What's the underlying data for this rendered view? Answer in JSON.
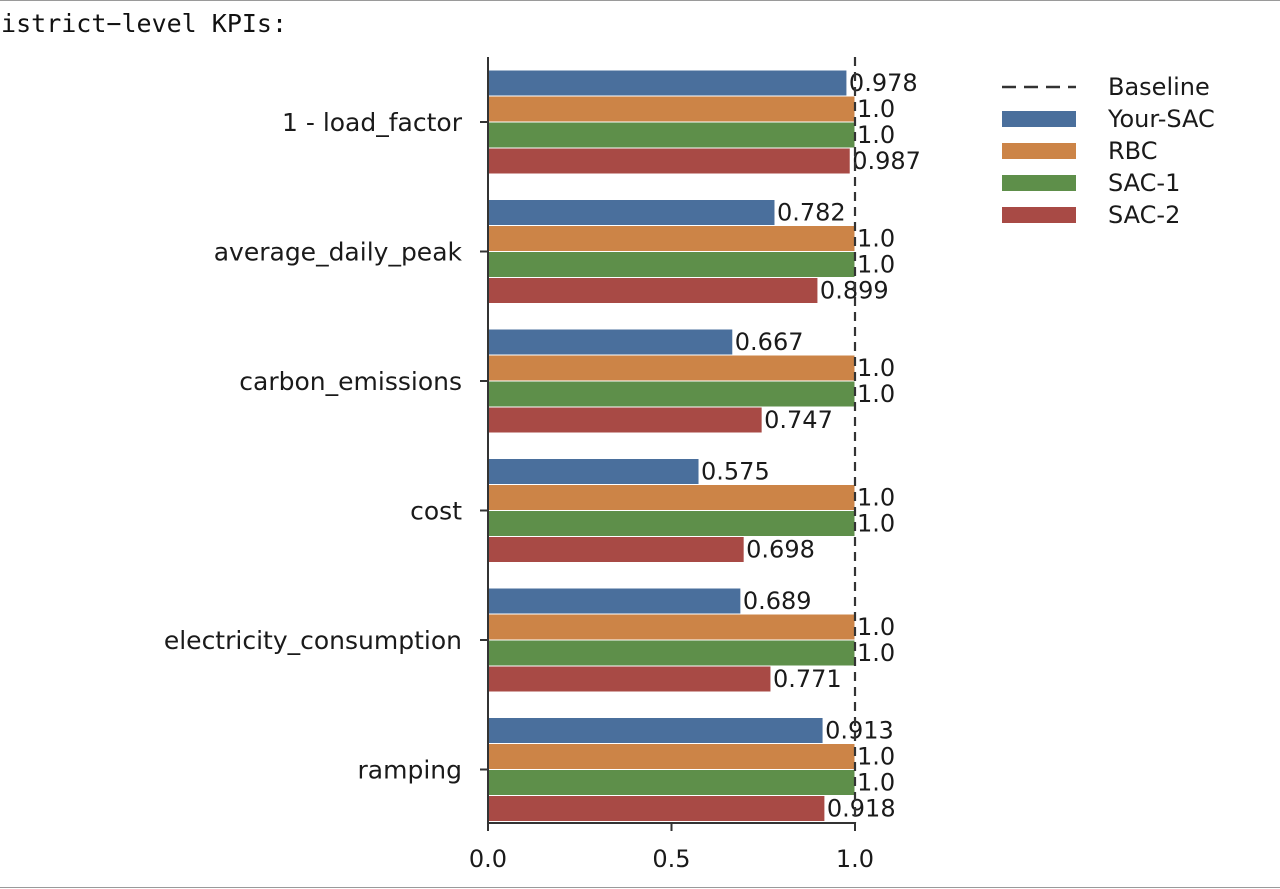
{
  "heading": "District−level KPIs:",
  "colors": {
    "Your-SAC": "#4a6f9c",
    "RBC": "#cc8447",
    "SAC-1": "#5e8f4a",
    "SAC-2": "#a84a45",
    "baseline": "#333333",
    "axis": "#333333"
  },
  "chart_data": {
    "type": "bar",
    "orientation": "horizontal",
    "title": "",
    "xlabel": "",
    "ylabel": "",
    "xlim": [
      0,
      1.0
    ],
    "xticks": [
      "0.0",
      "0.5",
      "1.0"
    ],
    "xtick_values": [
      0,
      0.5,
      1.0
    ],
    "categories": [
      "1 - load_factor",
      "average_daily_peak",
      "carbon_emissions",
      "cost",
      "electricity_consumption",
      "ramping"
    ],
    "series": [
      {
        "name": "Your-SAC",
        "values": [
          0.978,
          0.782,
          0.667,
          0.575,
          0.689,
          0.913
        ],
        "labels": [
          "0.978",
          "0.782",
          "0.667",
          "0.575",
          "0.689",
          "0.913"
        ]
      },
      {
        "name": "RBC",
        "values": [
          1.0,
          1.0,
          1.0,
          1.0,
          1.0,
          1.0
        ],
        "labels": [
          "1.0",
          "1.0",
          "1.0",
          "1.0",
          "1.0",
          "1.0"
        ]
      },
      {
        "name": "SAC-1",
        "values": [
          1.0,
          1.0,
          1.0,
          1.0,
          1.0,
          1.0
        ],
        "labels": [
          "1.0",
          "1.0",
          "1.0",
          "1.0",
          "1.0",
          "1.0"
        ]
      },
      {
        "name": "SAC-2",
        "values": [
          0.987,
          0.899,
          0.747,
          0.698,
          0.771,
          0.918
        ],
        "labels": [
          "0.987",
          "0.899",
          "0.747",
          "0.698",
          "0.771",
          "0.918"
        ]
      }
    ],
    "baseline": {
      "name": "Baseline",
      "value": 1.0,
      "style": "dashed"
    },
    "legend": {
      "placement": "top-right outside",
      "entries": [
        "Baseline",
        "Your-SAC",
        "RBC",
        "SAC-1",
        "SAC-2"
      ]
    },
    "grid": false
  }
}
